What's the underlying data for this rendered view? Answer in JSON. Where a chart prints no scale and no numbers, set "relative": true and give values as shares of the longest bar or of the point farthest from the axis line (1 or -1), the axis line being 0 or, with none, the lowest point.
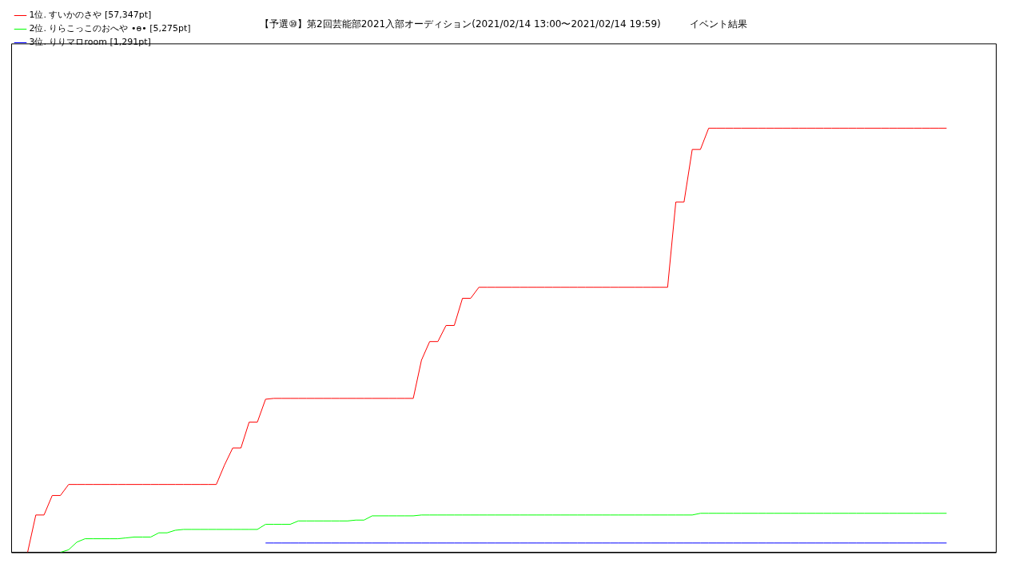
{
  "chart_data": {
    "type": "line",
    "title": "【予選⑩】第2回芸能部2021入部オーディション(2021/02/14 13:00〜2021/02/14 19:59)　　　イベント結果",
    "relative": true,
    "legend": "top left",
    "marker": "none",
    "categories": [
      null,
      null,
      null,
      null,
      null,
      null,
      null,
      null,
      null,
      null,
      null,
      null,
      null,
      null,
      null,
      null,
      null,
      null,
      null,
      null,
      null,
      null,
      null,
      null,
      null,
      null,
      null,
      null,
      null,
      null,
      null,
      null,
      null,
      null,
      null,
      null,
      null,
      null,
      null,
      null,
      null,
      null,
      null,
      null,
      null,
      null,
      null,
      null,
      null,
      null,
      null,
      null,
      null,
      null,
      null,
      null,
      null,
      null,
      null,
      null,
      null,
      null,
      null,
      null,
      null,
      null,
      null,
      null,
      null,
      null,
      null,
      null,
      null,
      null,
      null,
      null,
      null,
      null,
      null,
      null,
      null,
      null,
      null,
      null,
      null,
      null,
      null,
      null,
      null,
      null,
      null,
      null,
      null,
      null,
      null,
      null,
      null,
      null,
      null,
      null,
      null,
      null,
      null,
      null,
      null,
      null,
      null,
      null,
      null,
      null,
      null,
      null,
      null,
      null,
      null,
      null,
      null,
      null,
      null,
      null,
      null
    ],
    "series": [
      {
        "name": "1位. すいかのさや [57,347pt]",
        "color": "#ff0000",
        "values": [
          null,
          null,
          0,
          0.088,
          0.088,
          0.134,
          0.134,
          0.16,
          0.16,
          0.16,
          0.16,
          0.16,
          0.16,
          0.16,
          0.16,
          0.16,
          0.16,
          0.16,
          0.16,
          0.16,
          0.16,
          0.16,
          0.16,
          0.16,
          0.16,
          0.16,
          0.206,
          0.246,
          0.246,
          0.307,
          0.307,
          0.361,
          0.363,
          0.363,
          0.363,
          0.363,
          0.363,
          0.363,
          0.363,
          0.363,
          0.363,
          0.363,
          0.363,
          0.363,
          0.363,
          0.363,
          0.363,
          0.363,
          0.363,
          0.363,
          0.453,
          0.497,
          0.497,
          0.535,
          0.535,
          0.599,
          0.599,
          0.625,
          0.625,
          0.625,
          0.625,
          0.625,
          0.625,
          0.625,
          0.625,
          0.625,
          0.625,
          0.625,
          0.625,
          0.625,
          0.625,
          0.625,
          0.625,
          0.625,
          0.625,
          0.625,
          0.625,
          0.625,
          0.625,
          0.625,
          0.625,
          0.826,
          0.826,
          0.95,
          0.95,
          1,
          1,
          1,
          1,
          1,
          1,
          1,
          1,
          1,
          1,
          1,
          1,
          1,
          1,
          1,
          1,
          1,
          1,
          1,
          1,
          1,
          1,
          1,
          1,
          1,
          1,
          1,
          1,
          1,
          1,
          null,
          null,
          null,
          null,
          null,
          null
        ]
      },
      {
        "name": "2位. りらこっこのおへや •ɵ• [5,275pt]",
        "color": "#00ff00",
        "values": [
          null,
          null,
          null,
          null,
          null,
          null,
          0,
          0.006,
          0.024,
          0.032,
          0.032,
          0.032,
          0.032,
          0.032,
          0.034,
          0.036,
          0.036,
          0.036,
          0.046,
          0.046,
          0.052,
          0.054,
          0.054,
          0.054,
          0.054,
          0.054,
          0.054,
          0.054,
          0.054,
          0.054,
          0.054,
          0.066,
          0.066,
          0.066,
          0.066,
          0.074,
          0.074,
          0.074,
          0.074,
          0.074,
          0.074,
          0.074,
          0.076,
          0.076,
          0.086,
          0.086,
          0.086,
          0.086,
          0.086,
          0.086,
          0.088,
          0.088,
          0.088,
          0.088,
          0.088,
          0.088,
          0.088,
          0.088,
          0.088,
          0.088,
          0.088,
          0.088,
          0.088,
          0.088,
          0.088,
          0.088,
          0.088,
          0.088,
          0.088,
          0.088,
          0.088,
          0.088,
          0.088,
          0.088,
          0.088,
          0.088,
          0.088,
          0.088,
          0.088,
          0.088,
          0.088,
          0.088,
          0.088,
          0.088,
          0.092,
          0.092,
          0.092,
          0.092,
          0.092,
          0.092,
          0.092,
          0.092,
          0.092,
          0.092,
          0.092,
          0.092,
          0.092,
          0.092,
          0.092,
          0.092,
          0.092,
          0.092,
          0.092,
          0.092,
          0.092,
          0.092,
          0.092,
          0.092,
          0.092,
          0.092,
          0.092,
          0.092,
          0.092,
          0.092,
          0.092,
          null,
          null,
          null,
          null,
          null,
          null
        ]
      },
      {
        "name": "3位. りりマロroom [1,291pt]",
        "color": "#0000ff",
        "values": [
          null,
          null,
          null,
          null,
          null,
          null,
          null,
          null,
          null,
          null,
          null,
          null,
          null,
          null,
          null,
          null,
          null,
          null,
          null,
          null,
          null,
          null,
          null,
          null,
          null,
          null,
          null,
          null,
          null,
          null,
          null,
          0.022,
          0.022,
          0.022,
          0.022,
          0.022,
          0.022,
          0.022,
          0.022,
          0.022,
          0.022,
          0.022,
          0.022,
          0.022,
          0.022,
          0.022,
          0.022,
          0.022,
          0.022,
          0.022,
          0.022,
          0.022,
          0.022,
          0.022,
          0.022,
          0.022,
          0.022,
          0.022,
          0.022,
          0.022,
          0.022,
          0.022,
          0.022,
          0.022,
          0.022,
          0.022,
          0.022,
          0.022,
          0.022,
          0.022,
          0.022,
          0.022,
          0.022,
          0.022,
          0.022,
          0.022,
          0.022,
          0.022,
          0.022,
          0.022,
          0.022,
          0.022,
          0.022,
          0.022,
          0.022,
          0.022,
          0.022,
          0.022,
          0.022,
          0.022,
          0.022,
          0.022,
          0.022,
          0.022,
          0.022,
          0.022,
          0.022,
          0.022,
          0.022,
          0.022,
          0.022,
          0.022,
          0.022,
          0.022,
          0.022,
          0.022,
          0.022,
          0.022,
          0.022,
          0.022,
          0.022,
          0.022,
          0.022,
          0.022,
          0.022,
          null,
          null,
          null,
          null,
          null,
          null
        ]
      }
    ]
  }
}
